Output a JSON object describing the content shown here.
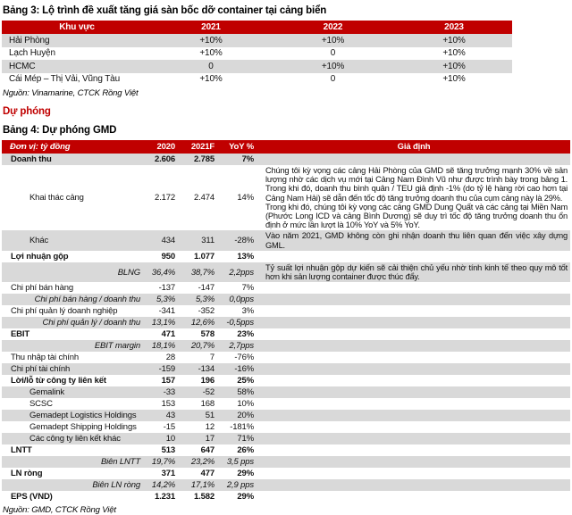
{
  "colors": {
    "accent_red": "#C00000",
    "stripe_gray": "#D9D9D9"
  },
  "table3": {
    "title": "Bảng 3: Lộ trình đề xuất tăng giá sàn bốc dỡ container tại cảng biển",
    "headers": [
      "Khu vực",
      "2021",
      "2022",
      "2023"
    ],
    "rows": [
      {
        "label": "Hải Phòng",
        "values": [
          "+10%",
          "+10%",
          "+10%"
        ]
      },
      {
        "label": "Lạch Huyện",
        "values": [
          "+10%",
          "0",
          "+10%"
        ]
      },
      {
        "label": "HCMC",
        "values": [
          "0",
          "+10%",
          "+10%"
        ]
      },
      {
        "label": "Cái Mép – Thị Vải, Vũng Tàu",
        "values": [
          "+10%",
          "0",
          "+10%"
        ]
      }
    ],
    "source": "Nguồn: Vinamarine, CTCK Rồng Việt"
  },
  "section_heading": "Dự phóng",
  "table4": {
    "title": "Bảng 4: Dự phóng GMD",
    "headers": [
      "Đơn vị: tỷ đồng",
      "2020",
      "2021F",
      "YoY %",
      "Giả định"
    ],
    "rows": [
      {
        "label": "Doanh thu",
        "v2020": "2.606",
        "v2021f": "2.785",
        "yoy": "7%",
        "style": "bold",
        "assumption": ""
      },
      {
        "label": "Khai thác cảng",
        "v2020": "2.172",
        "v2021f": "2.474",
        "yoy": "14%",
        "style": "indent",
        "tall": true,
        "assumption": [
          "Chúng tôi kỳ vọng các cảng Hải Phòng của GMD sẽ tăng trưởng mạnh 30% về sản lượng nhờ các dịch vụ mới tại Cảng Nam Đình Vũ như được trình bày trong bảng 1. Trong khi đó, doanh thu bình quân / TEU giả định -1% (do tỷ lệ hàng rời cao hơn tại Cảng Nam Hải) sẽ dẫn đến tốc độ tăng trưởng doanh thu của cụm cảng này là 29%.",
          "Trong khi đó, chúng tôi kỳ vọng các cảng GMD Dung Quất và các cảng tại Miền Nam (Phước Long ICD và cảng Bình Dương) sẽ duy trì tốc độ tăng trưởng doanh thu ổn định ở mức lần lượt là 10% YoY và 5% YoY."
        ]
      },
      {
        "label": "Khác",
        "v2020": "434",
        "v2021f": "311",
        "yoy": "-28%",
        "style": "indent",
        "assumption": "Vào năm 2021, GMD không còn ghi nhận doanh thu liên quan đến việc xây dựng GML."
      },
      {
        "label": "Lợi nhuận gộp",
        "v2020": "950",
        "v2021f": "1.077",
        "yoy": "13%",
        "style": "bold",
        "assumption": ""
      },
      {
        "label": "BLNG",
        "v2020": "36,4%",
        "v2021f": "38,7%",
        "yoy": "2,2pps",
        "style": "italic",
        "assumption": "Tỷ suất lợi nhuận gộp dự kiến sẽ cải thiện chủ yếu nhờ tính kinh tế theo quy mô tốt hơn khi sản lượng container được thúc đẩy."
      },
      {
        "label": "Chi phí bán hàng",
        "v2020": "-137",
        "v2021f": "-147",
        "yoy": "7%",
        "style": "normal",
        "assumption": ""
      },
      {
        "label": "Chi phí bán hàng / doanh thu",
        "v2020": "5,3%",
        "v2021f": "5,3%",
        "yoy": "0,0pps",
        "style": "italic",
        "assumption": ""
      },
      {
        "label": "Chi phí quản lý doanh nghiệp",
        "v2020": "-341",
        "v2021f": "-352",
        "yoy": "3%",
        "style": "normal",
        "assumption": ""
      },
      {
        "label": "Chi phí quản lý / doanh thu",
        "v2020": "13,1%",
        "v2021f": "12,6%",
        "yoy": "-0,5pps",
        "style": "italic",
        "assumption": ""
      },
      {
        "label": "EBIT",
        "v2020": "471",
        "v2021f": "578",
        "yoy": "23%",
        "style": "bold",
        "assumption": ""
      },
      {
        "label": "EBIT margin",
        "v2020": "18,1%",
        "v2021f": "20,7%",
        "yoy": "2,7pps",
        "style": "italic",
        "assumption": ""
      },
      {
        "label": "Thu nhập tài chính",
        "v2020": "28",
        "v2021f": "7",
        "yoy": "-76%",
        "style": "normal",
        "assumption": ""
      },
      {
        "label": "Chi phí tài chính",
        "v2020": "-159",
        "v2021f": "-134",
        "yoy": "-16%",
        "style": "normal",
        "assumption": ""
      },
      {
        "label": "Lời/lỗ từ công ty liên kết",
        "v2020": "157",
        "v2021f": "196",
        "yoy": "25%",
        "style": "bold",
        "assumption": ""
      },
      {
        "label": "Gemalink",
        "v2020": "-33",
        "v2021f": "-52",
        "yoy": "58%",
        "style": "indent",
        "assumption": ""
      },
      {
        "label": "SCSC",
        "v2020": "153",
        "v2021f": "168",
        "yoy": "10%",
        "style": "indent",
        "assumption": ""
      },
      {
        "label": "Gemadept Logistics Holdings",
        "v2020": "43",
        "v2021f": "51",
        "yoy": "20%",
        "style": "indent",
        "assumption": ""
      },
      {
        "label": "Gemadept Shipping Holdings",
        "v2020": "-15",
        "v2021f": "12",
        "yoy": "-181%",
        "style": "indent",
        "assumption": ""
      },
      {
        "label": "Các công ty liên kết khác",
        "v2020": "10",
        "v2021f": "17",
        "yoy": "71%",
        "style": "indent",
        "assumption": ""
      },
      {
        "label": "LNTT",
        "v2020": "513",
        "v2021f": "647",
        "yoy": "26%",
        "style": "bold",
        "assumption": ""
      },
      {
        "label": "Biên LNTT",
        "v2020": "19,7%",
        "v2021f": "23,2%",
        "yoy": "3,5 pps",
        "style": "italic",
        "assumption": ""
      },
      {
        "label": "LN ròng",
        "v2020": "371",
        "v2021f": "477",
        "yoy": "29%",
        "style": "bold",
        "assumption": ""
      },
      {
        "label": "Biên LN ròng",
        "v2020": "14,2%",
        "v2021f": "17,1%",
        "yoy": "2,9 pps",
        "style": "italic",
        "assumption": ""
      },
      {
        "label": "EPS (VND)",
        "v2020": "1.231",
        "v2021f": "1.582",
        "yoy": "29%",
        "style": "bold",
        "assumption": ""
      }
    ],
    "source": "Nguồn: GMD, CTCK Rồng Việt"
  }
}
